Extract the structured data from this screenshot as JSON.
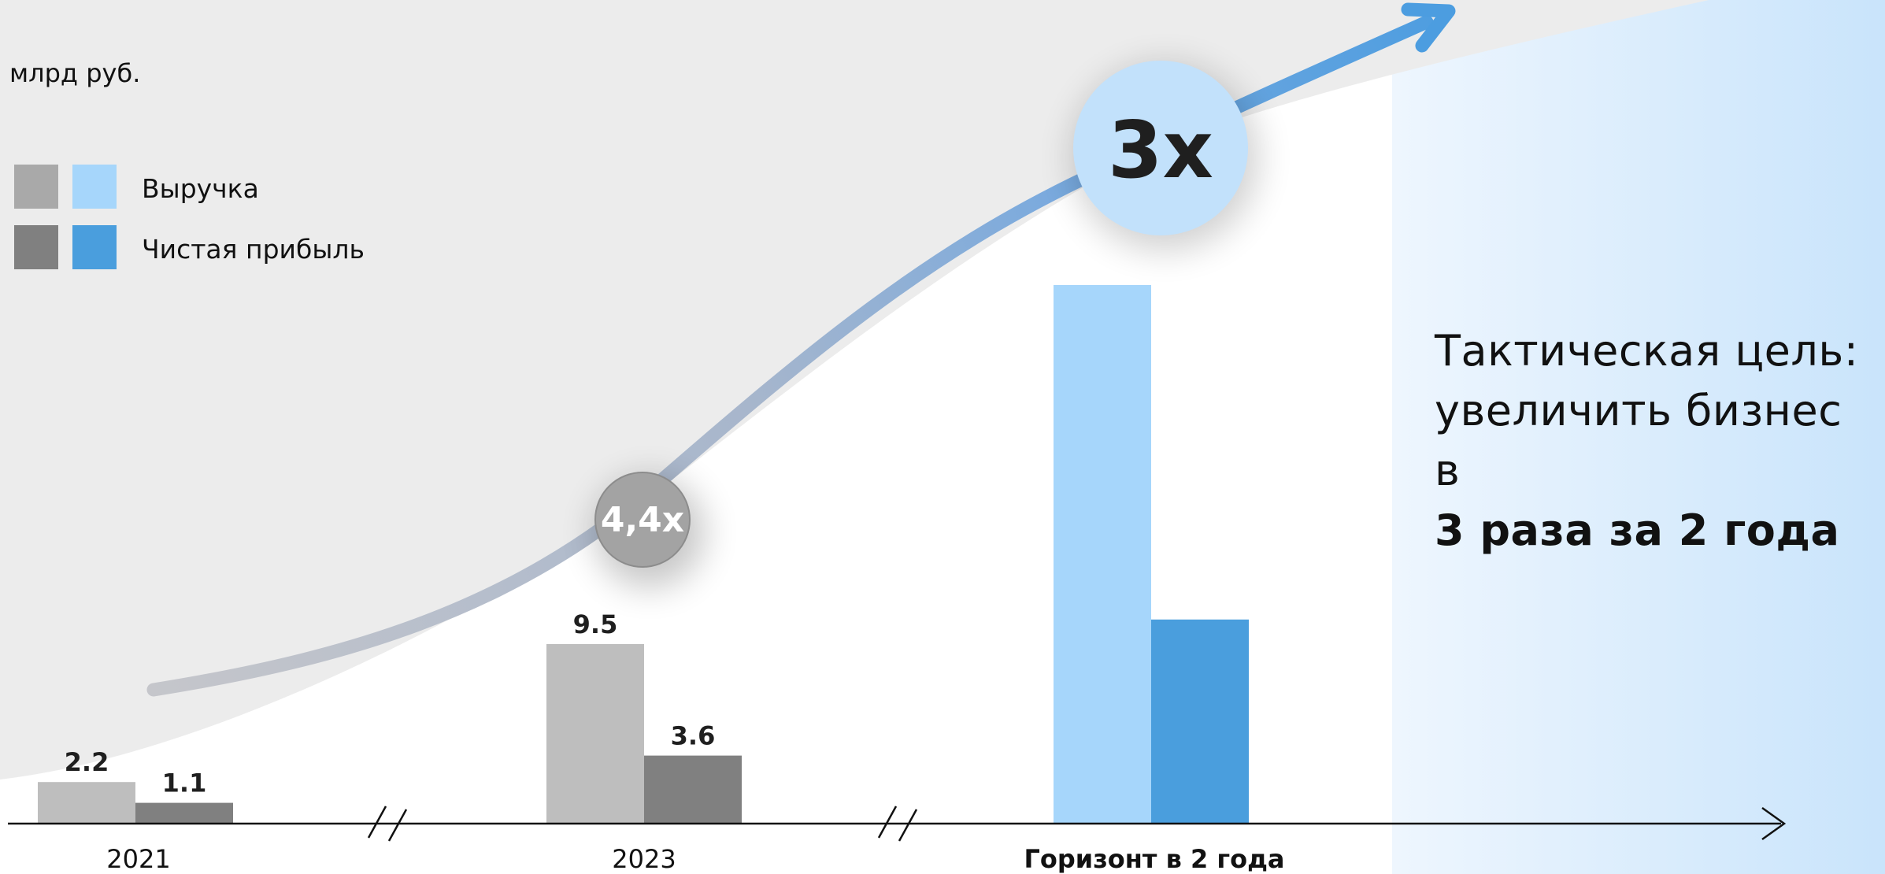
{
  "chart_data": {
    "type": "bar",
    "unit": "млрд руб.",
    "categories": [
      "2021",
      "2023",
      "Горизонт в 2 года"
    ],
    "series": [
      {
        "name": "Выручка",
        "values": [
          2.2,
          9.5,
          28.5
        ],
        "value_labels": [
          "2.2",
          "9.5",
          ""
        ],
        "colors": [
          "#bebebe",
          "#bebebe",
          "#a6d6fb"
        ]
      },
      {
        "name": "Чистая прибыль",
        "values": [
          1.1,
          3.6,
          10.8
        ],
        "value_labels": [
          "1.1",
          "3.6",
          ""
        ],
        "colors": [
          "#808080",
          "#808080",
          "#4a9edd"
        ]
      }
    ],
    "ylim": [
      0,
      30
    ],
    "axis_breaks": [
      "between 2021 and 2023",
      "between 2023 and Горизонт в 2 года"
    ],
    "grid": false,
    "legend": {
      "placement": "top-left",
      "entries": [
        {
          "label": "Выручка",
          "colors": [
            "#a9a9a9",
            "#a6d6fb"
          ]
        },
        {
          "label": "Чистая прибыль",
          "colors": [
            "#808080",
            "#4a9edd"
          ]
        }
      ]
    },
    "annotations": [
      {
        "text": "4,4x",
        "style": "gray-circle"
      },
      {
        "text": "3x",
        "style": "blue-circle"
      }
    ]
  },
  "goal": {
    "line1": "Тактическая цель:",
    "line2": "увеличить бизнес в",
    "line3": "3 раза за 2 года"
  },
  "colors": {
    "gray_bar_light": "#bebebe",
    "gray_bar_dark": "#808080",
    "blue_bar_light": "#a6d6fb",
    "blue_bar_dark": "#4a9edd",
    "arrow_blue": "#4c9de0",
    "arrow_gray": "#c0c2c8",
    "bubble_blue": "#c2e1fb",
    "bubble_gray": "#a3a3a3",
    "panel_blue": "#c9e4fb"
  }
}
